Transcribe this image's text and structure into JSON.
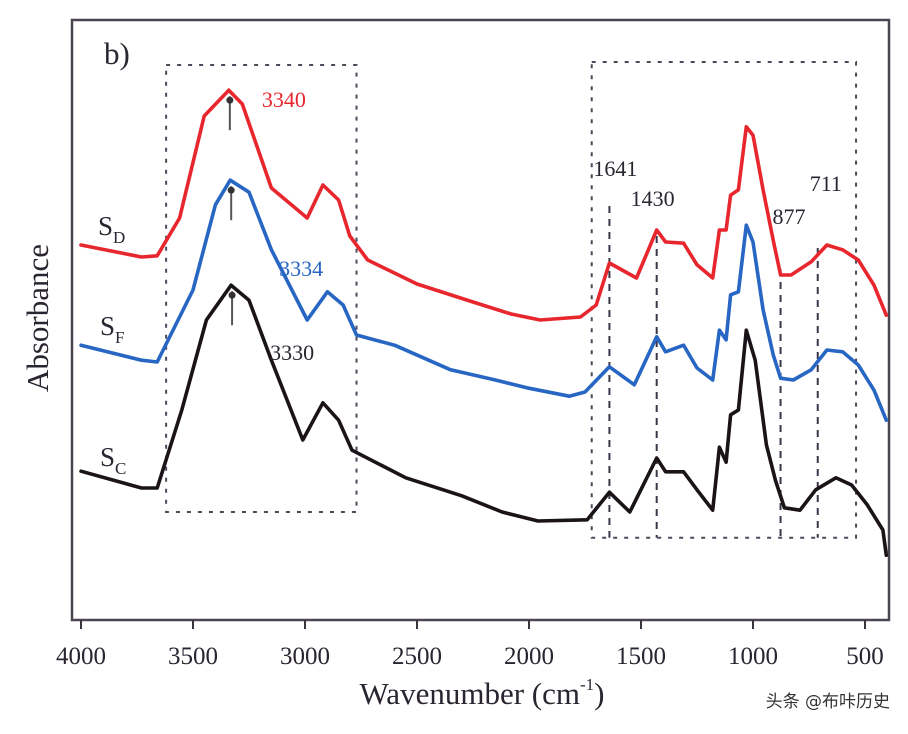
{
  "chart_data": {
    "type": "line",
    "panel_label": "b)",
    "title": "",
    "xlabel": "Wavenumber (cm",
    "xlabel_sup": "-1",
    "xlabel_close": ")",
    "ylabel": "Absorbance",
    "xlim": [
      4000,
      400
    ],
    "x_reversed": true,
    "ylim": [
      0,
      1
    ],
    "x_ticks": [
      4000,
      3500,
      3000,
      2500,
      2000,
      1500,
      1000,
      500
    ],
    "x_tick_labels": [
      "4000",
      "3500",
      "3000",
      "2500",
      "2000",
      "1500",
      "1000",
      "500"
    ],
    "y_ticks": [],
    "grid": false,
    "series": [
      {
        "name": "SD",
        "label_main": "S",
        "label_sub": "D",
        "color": "#e8262e",
        "peak_annotation": {
          "text": "3340",
          "x": 3340
        },
        "points": [
          [
            4000,
            0.625
          ],
          [
            3730,
            0.605
          ],
          [
            3660,
            0.607
          ],
          [
            3560,
            0.67
          ],
          [
            3450,
            0.84
          ],
          [
            3340,
            0.883
          ],
          [
            3280,
            0.86
          ],
          [
            3150,
            0.72
          ],
          [
            2990,
            0.67
          ],
          [
            2920,
            0.725
          ],
          [
            2850,
            0.7
          ],
          [
            2800,
            0.64
          ],
          [
            2720,
            0.6
          ],
          [
            2500,
            0.56
          ],
          [
            2250,
            0.53
          ],
          [
            2080,
            0.51
          ],
          [
            1950,
            0.5
          ],
          [
            1770,
            0.505
          ],
          [
            1700,
            0.525
          ],
          [
            1641,
            0.595
          ],
          [
            1520,
            0.57
          ],
          [
            1430,
            0.65
          ],
          [
            1390,
            0.63
          ],
          [
            1310,
            0.628
          ],
          [
            1250,
            0.592
          ],
          [
            1180,
            0.57
          ],
          [
            1150,
            0.65
          ],
          [
            1120,
            0.65
          ],
          [
            1100,
            0.708
          ],
          [
            1065,
            0.717
          ],
          [
            1030,
            0.822
          ],
          [
            1000,
            0.808
          ],
          [
            955,
            0.717
          ],
          [
            910,
            0.633
          ],
          [
            877,
            0.575
          ],
          [
            830,
            0.575
          ],
          [
            740,
            0.597
          ],
          [
            670,
            0.625
          ],
          [
            600,
            0.617
          ],
          [
            530,
            0.6
          ],
          [
            460,
            0.558
          ],
          [
            405,
            0.508
          ]
        ]
      },
      {
        "name": "SF",
        "label_main": "S",
        "label_sub": "F",
        "color": "#2866c4",
        "peak_annotation": {
          "text": "3334",
          "x": 3334
        },
        "points": [
          [
            4000,
            0.458
          ],
          [
            3730,
            0.433
          ],
          [
            3660,
            0.43
          ],
          [
            3500,
            0.55
          ],
          [
            3400,
            0.692
          ],
          [
            3334,
            0.733
          ],
          [
            3250,
            0.713
          ],
          [
            3150,
            0.617
          ],
          [
            2990,
            0.5
          ],
          [
            2900,
            0.547
          ],
          [
            2830,
            0.525
          ],
          [
            2770,
            0.475
          ],
          [
            2600,
            0.458
          ],
          [
            2350,
            0.417
          ],
          [
            2150,
            0.4
          ],
          [
            2010,
            0.387
          ],
          [
            1820,
            0.373
          ],
          [
            1750,
            0.38
          ],
          [
            1641,
            0.422
          ],
          [
            1530,
            0.392
          ],
          [
            1430,
            0.472
          ],
          [
            1390,
            0.447
          ],
          [
            1310,
            0.458
          ],
          [
            1250,
            0.42
          ],
          [
            1180,
            0.4
          ],
          [
            1150,
            0.483
          ],
          [
            1120,
            0.467
          ],
          [
            1100,
            0.542
          ],
          [
            1065,
            0.547
          ],
          [
            1030,
            0.658
          ],
          [
            1000,
            0.63
          ],
          [
            955,
            0.517
          ],
          [
            910,
            0.442
          ],
          [
            877,
            0.403
          ],
          [
            820,
            0.4
          ],
          [
            740,
            0.417
          ],
          [
            670,
            0.45
          ],
          [
            600,
            0.447
          ],
          [
            530,
            0.425
          ],
          [
            460,
            0.383
          ],
          [
            405,
            0.333
          ]
        ]
      },
      {
        "name": "SC",
        "label_main": "S",
        "label_sub": "C",
        "color": "#1a1418",
        "peak_annotation": {
          "text": "3330",
          "x": 3330
        },
        "points": [
          [
            4000,
            0.248
          ],
          [
            3730,
            0.22
          ],
          [
            3660,
            0.22
          ],
          [
            3550,
            0.35
          ],
          [
            3440,
            0.5
          ],
          [
            3330,
            0.558
          ],
          [
            3250,
            0.533
          ],
          [
            3150,
            0.433
          ],
          [
            3010,
            0.3
          ],
          [
            2920,
            0.362
          ],
          [
            2850,
            0.333
          ],
          [
            2790,
            0.283
          ],
          [
            2550,
            0.237
          ],
          [
            2300,
            0.207
          ],
          [
            2120,
            0.18
          ],
          [
            1960,
            0.165
          ],
          [
            1740,
            0.167
          ],
          [
            1641,
            0.213
          ],
          [
            1550,
            0.18
          ],
          [
            1430,
            0.27
          ],
          [
            1390,
            0.247
          ],
          [
            1310,
            0.247
          ],
          [
            1250,
            0.217
          ],
          [
            1180,
            0.183
          ],
          [
            1150,
            0.288
          ],
          [
            1120,
            0.263
          ],
          [
            1100,
            0.342
          ],
          [
            1065,
            0.35
          ],
          [
            1030,
            0.483
          ],
          [
            990,
            0.433
          ],
          [
            940,
            0.292
          ],
          [
            900,
            0.233
          ],
          [
            860,
            0.187
          ],
          [
            790,
            0.183
          ],
          [
            720,
            0.217
          ],
          [
            630,
            0.237
          ],
          [
            560,
            0.225
          ],
          [
            490,
            0.192
          ],
          [
            420,
            0.15
          ],
          [
            405,
            0.108
          ]
        ]
      }
    ],
    "highlight_regions": [
      {
        "x_range": [
          3620,
          2770
        ],
        "y_range": [
          0.18,
          0.925
        ]
      },
      {
        "x_range": [
          1720,
          540
        ],
        "y_range": [
          0.137,
          0.93
        ]
      }
    ],
    "reference_lines": [
      {
        "x": 1641,
        "label": "1641"
      },
      {
        "x": 1430,
        "label": "1430"
      },
      {
        "x": 877,
        "label": "877"
      },
      {
        "x": 711,
        "label": "711"
      }
    ]
  },
  "watermark": "头条 @布咔历史"
}
